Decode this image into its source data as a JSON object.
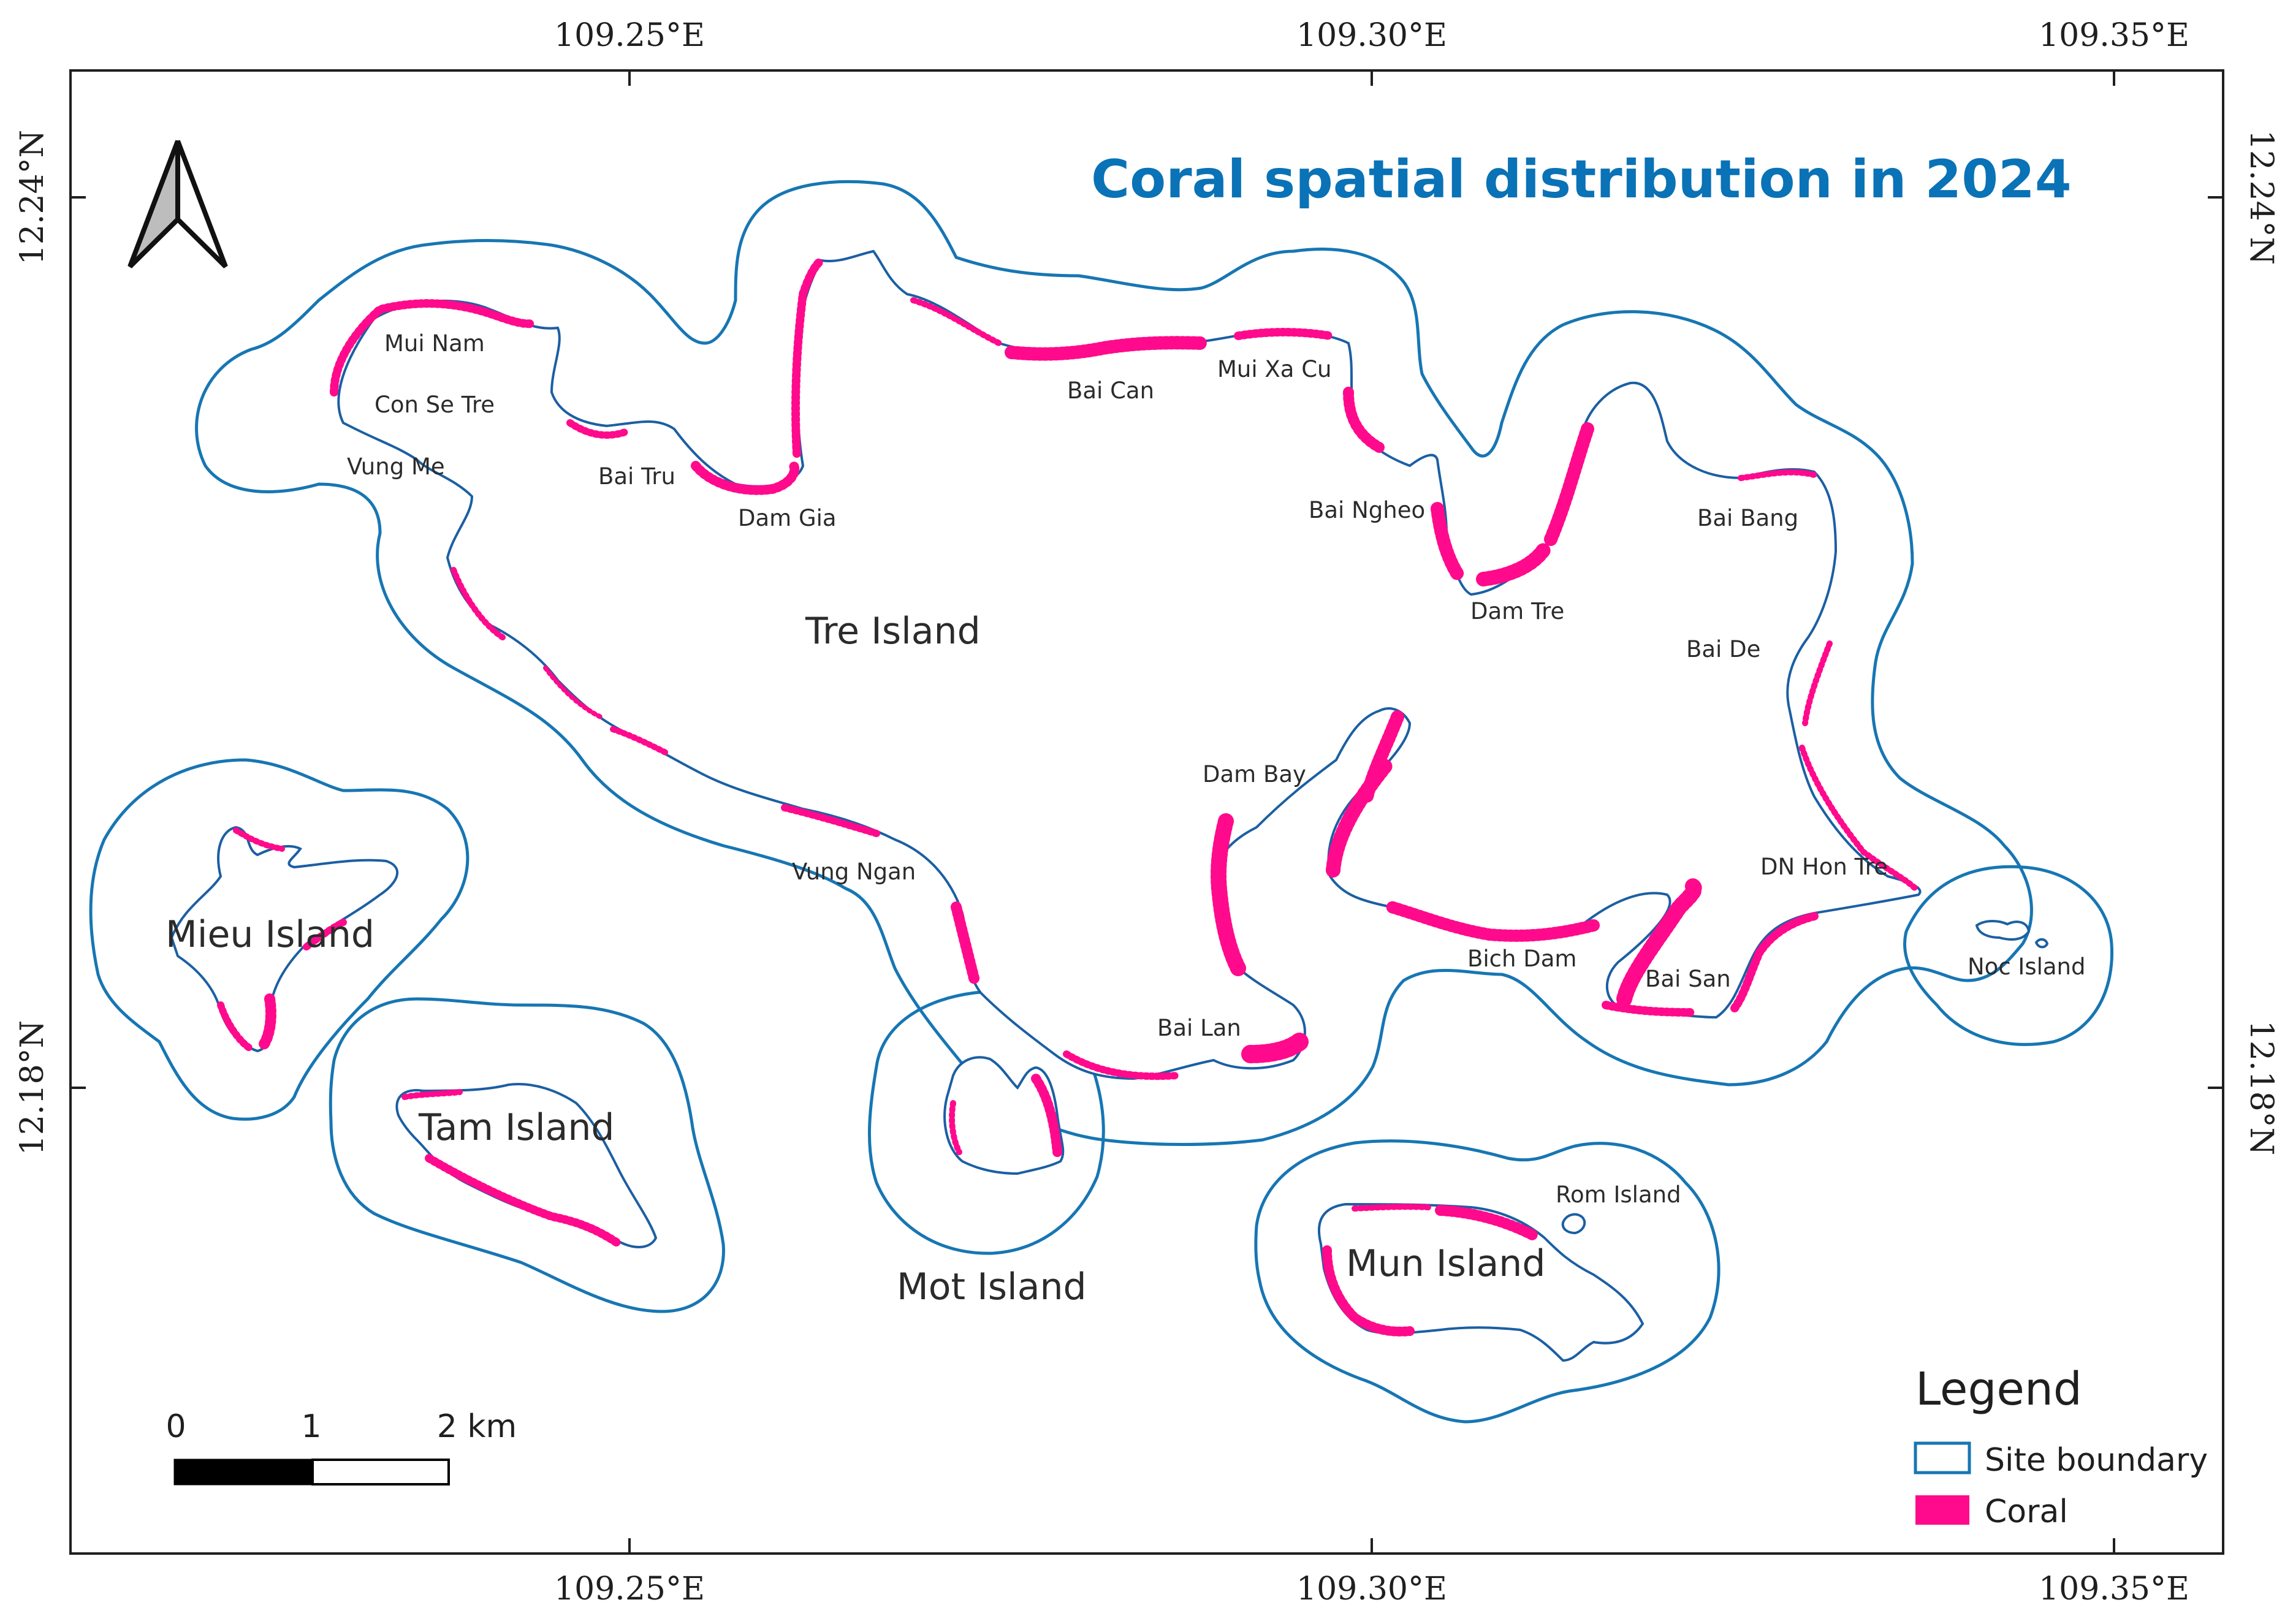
{
  "title": "Coral spatial distribution in 2024",
  "colors": {
    "site_boundary": "#1776b3",
    "coral": "#ff0a8c",
    "title": "#0a72b6",
    "frame": "#1f1f1f"
  },
  "graticule": {
    "longitude_labels": [
      "109.25°E",
      "109.30°E",
      "109.35°E"
    ],
    "latitude_labels": [
      "12.24°N",
      "12.18°N"
    ]
  },
  "islands": [
    "Tre Island",
    "Mieu Island",
    "Tam Island",
    "Mot Island",
    "Mun Island",
    "Noc Island",
    "Rom Island"
  ],
  "places": [
    "Mui Nam",
    "Con Se Tre",
    "Vung Me",
    "Bai Tru",
    "Dam Gia",
    "Bai Can",
    "Mui Xa Cu",
    "Bai Ngheo",
    "Dam Tre",
    "Bai Bang",
    "Bai De",
    "Dam Bay",
    "Vung Ngan",
    "DN Hon Tre",
    "Bich Dam",
    "Bai San",
    "Bai Lan"
  ],
  "legend": {
    "title": "Legend",
    "items": [
      {
        "label": "Site boundary",
        "symbol": "outline",
        "color": "#1776b3"
      },
      {
        "label": "Coral",
        "symbol": "fill",
        "color": "#ff0a8c"
      }
    ]
  },
  "scale_bar": {
    "labels": [
      "0",
      "1",
      "2 km"
    ]
  },
  "north_arrow": {
    "icon": "north-arrow-icon"
  }
}
